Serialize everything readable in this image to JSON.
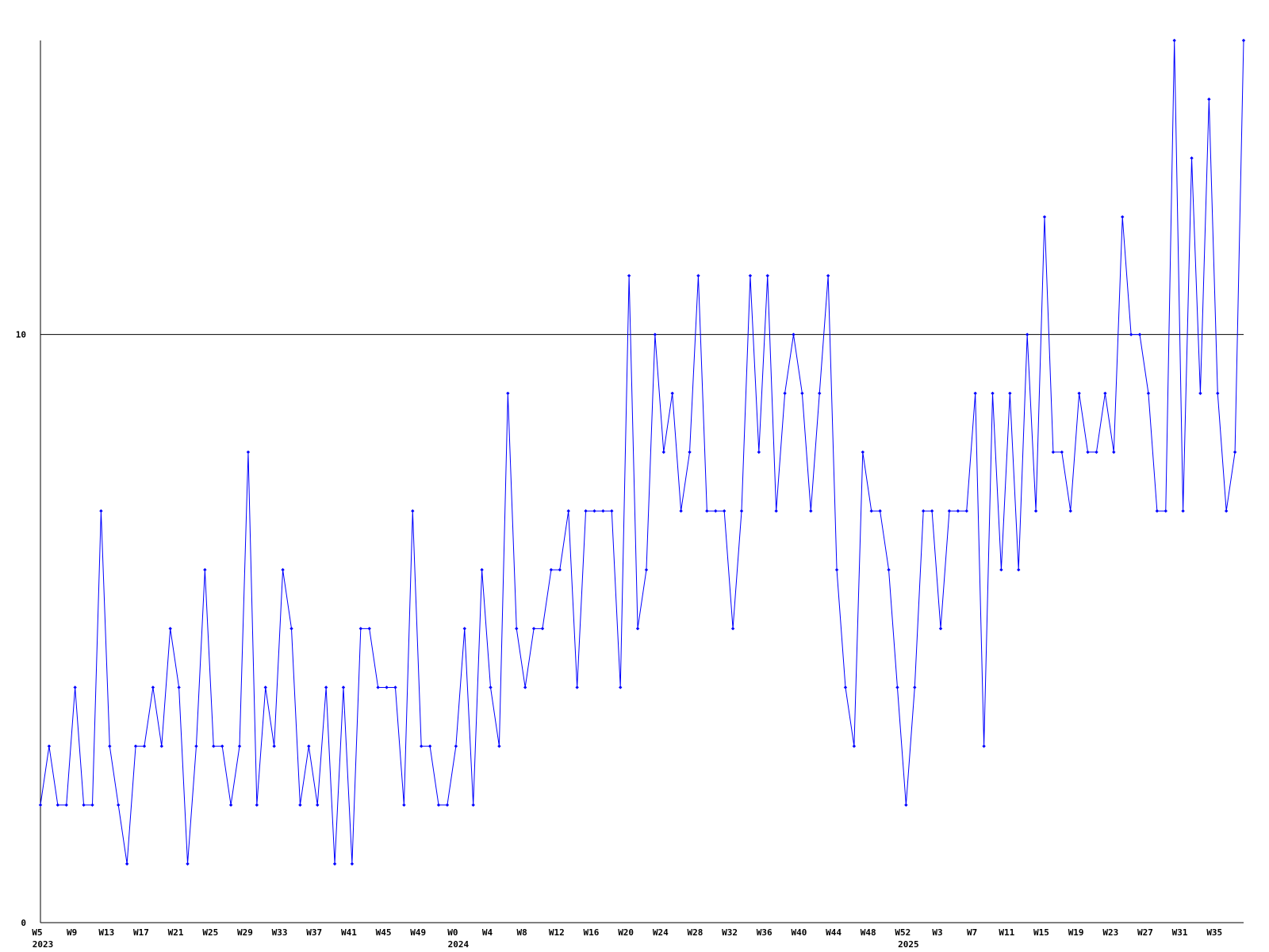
{
  "chart_data": {
    "type": "line",
    "categories": [
      "W5",
      null,
      null,
      null,
      "W9",
      null,
      null,
      null,
      "W13",
      null,
      null,
      null,
      "W17",
      null,
      null,
      null,
      "W21",
      null,
      null,
      null,
      "W25",
      null,
      null,
      null,
      "W29",
      null,
      null,
      null,
      "W33",
      null,
      null,
      null,
      "W37",
      null,
      null,
      null,
      "W41",
      null,
      null,
      null,
      "W45",
      null,
      null,
      null,
      "W49",
      null,
      null,
      null,
      "W0",
      null,
      null,
      null,
      "W4",
      null,
      null,
      null,
      "W8",
      null,
      null,
      null,
      "W12",
      null,
      null,
      null,
      "W16",
      null,
      null,
      null,
      "W20",
      null,
      null,
      null,
      "W24",
      null,
      null,
      null,
      "W28",
      null,
      null,
      null,
      "W32",
      null,
      null,
      null,
      "W36",
      null,
      null,
      null,
      "W40",
      null,
      null,
      null,
      "W44",
      null,
      null,
      null,
      "W48",
      null,
      null,
      null,
      "W52",
      null,
      null,
      null,
      "W3",
      null,
      null,
      null,
      "W7",
      null,
      null,
      null,
      "W11",
      null,
      null,
      null,
      "W15",
      null,
      null,
      null,
      "W19",
      null,
      null,
      null,
      "W23",
      null,
      null,
      null,
      "W27",
      null,
      null,
      null,
      "W31",
      null,
      null,
      null,
      "W35",
      null,
      null,
      null
    ],
    "year_labels": [
      "2023",
      null,
      null,
      null,
      null,
      null,
      null,
      null,
      null,
      null,
      null,
      null,
      null,
      null,
      null,
      null,
      null,
      null,
      null,
      null,
      null,
      null,
      null,
      null,
      null,
      null,
      null,
      null,
      null,
      null,
      null,
      null,
      null,
      null,
      null,
      null,
      null,
      null,
      null,
      null,
      null,
      null,
      null,
      null,
      null,
      null,
      null,
      null,
      "2024",
      null,
      null,
      null,
      null,
      null,
      null,
      null,
      null,
      null,
      null,
      null,
      null,
      null,
      null,
      null,
      null,
      null,
      null,
      null,
      null,
      null,
      null,
      null,
      null,
      null,
      null,
      null,
      null,
      null,
      null,
      null,
      null,
      null,
      null,
      null,
      null,
      null,
      null,
      null,
      null,
      null,
      null,
      null,
      null,
      null,
      null,
      null,
      null,
      null,
      null,
      null,
      "2025",
      null,
      null,
      null,
      null,
      null,
      null,
      null,
      null,
      null,
      null,
      null,
      null,
      null,
      null,
      null,
      null,
      null,
      null,
      null,
      null,
      null,
      null,
      null,
      null,
      null,
      null,
      null,
      null,
      null,
      null,
      null,
      null,
      null,
      null,
      null,
      null,
      null,
      null,
      null
    ],
    "values": [
      2,
      3,
      2,
      2,
      4,
      2,
      2,
      7,
      3,
      2,
      1,
      3,
      3,
      4,
      3,
      5,
      4,
      1,
      3,
      6,
      3,
      3,
      2,
      3,
      8,
      2,
      4,
      3,
      6,
      5,
      2,
      3,
      2,
      4,
      1,
      4,
      1,
      5,
      5,
      4,
      4,
      4,
      2,
      7,
      3,
      3,
      2,
      2,
      3,
      5,
      2,
      6,
      4,
      3,
      9,
      5,
      4,
      5,
      5,
      6,
      6,
      7,
      4,
      7,
      7,
      7,
      7,
      4,
      11,
      5,
      6,
      10,
      8,
      9,
      7,
      8,
      11,
      7,
      7,
      7,
      5,
      7,
      11,
      8,
      11,
      7,
      9,
      10,
      9,
      7,
      9,
      11,
      6,
      4,
      3,
      8,
      7,
      7,
      6,
      4,
      2,
      4,
      7,
      7,
      5,
      7,
      7,
      7,
      9,
      3,
      9,
      6,
      9,
      6,
      10,
      7,
      12,
      8,
      8,
      7,
      9,
      8,
      8,
      9,
      8,
      12,
      10,
      10,
      9,
      7,
      7,
      15,
      7,
      13,
      9,
      14,
      9,
      7,
      8,
      15
    ],
    "color": "#0000ff",
    "ylim": [
      0,
      15
    ],
    "yticks": [
      0,
      10
    ],
    "grid": true
  }
}
